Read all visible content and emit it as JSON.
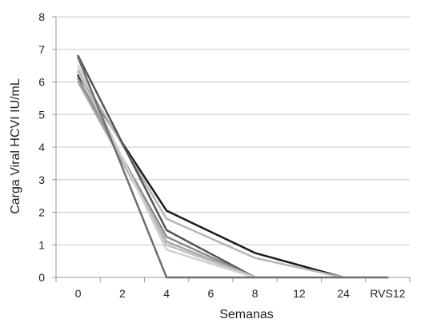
{
  "chart_data": {
    "type": "line",
    "xlabel": "Semanas",
    "ylabel": "Carga Viral HCVI IU/mL",
    "categories": [
      "0",
      "2",
      "4",
      "6",
      "8",
      "12",
      "24",
      "RVS12"
    ],
    "ylim": [
      0,
      8
    ],
    "yticks": [
      0,
      1,
      2,
      3,
      4,
      5,
      6,
      7,
      8
    ],
    "grid": "horizontal",
    "legend": "none",
    "series": [
      {
        "color": "#1a1a1a",
        "points": [
          [
            0,
            6.2
          ],
          [
            2,
            2.05
          ],
          [
            4,
            0.75
          ],
          [
            6,
            0
          ]
        ]
      },
      {
        "color": "#b5b5b5",
        "points": [
          [
            0,
            6.35
          ],
          [
            2,
            1.8
          ],
          [
            4,
            0.6
          ],
          [
            6,
            0
          ]
        ]
      },
      {
        "color": "#555555",
        "points": [
          [
            0,
            6.8
          ],
          [
            2,
            1.45
          ],
          [
            4,
            0
          ]
        ]
      },
      {
        "color": "#8a8a8a",
        "points": [
          [
            0,
            6.1
          ],
          [
            2,
            1.25
          ],
          [
            4,
            0
          ]
        ]
      },
      {
        "color": "#a8a8a8",
        "points": [
          [
            0,
            6.0
          ],
          [
            2,
            1.1
          ],
          [
            4,
            0
          ]
        ]
      },
      {
        "color": "#c0c0c0",
        "points": [
          [
            0,
            6.3
          ],
          [
            2,
            1.0
          ],
          [
            4,
            0
          ]
        ]
      },
      {
        "color": "#d0d0d0",
        "points": [
          [
            0,
            6.5
          ],
          [
            2,
            0.85
          ],
          [
            4,
            0
          ]
        ]
      },
      {
        "color": "#6e6e6e",
        "points": [
          [
            0,
            6.75
          ],
          [
            2,
            0
          ],
          [
            3,
            0
          ],
          [
            4,
            0
          ],
          [
            5,
            0
          ],
          [
            6,
            0
          ],
          [
            7,
            0
          ]
        ]
      }
    ]
  }
}
